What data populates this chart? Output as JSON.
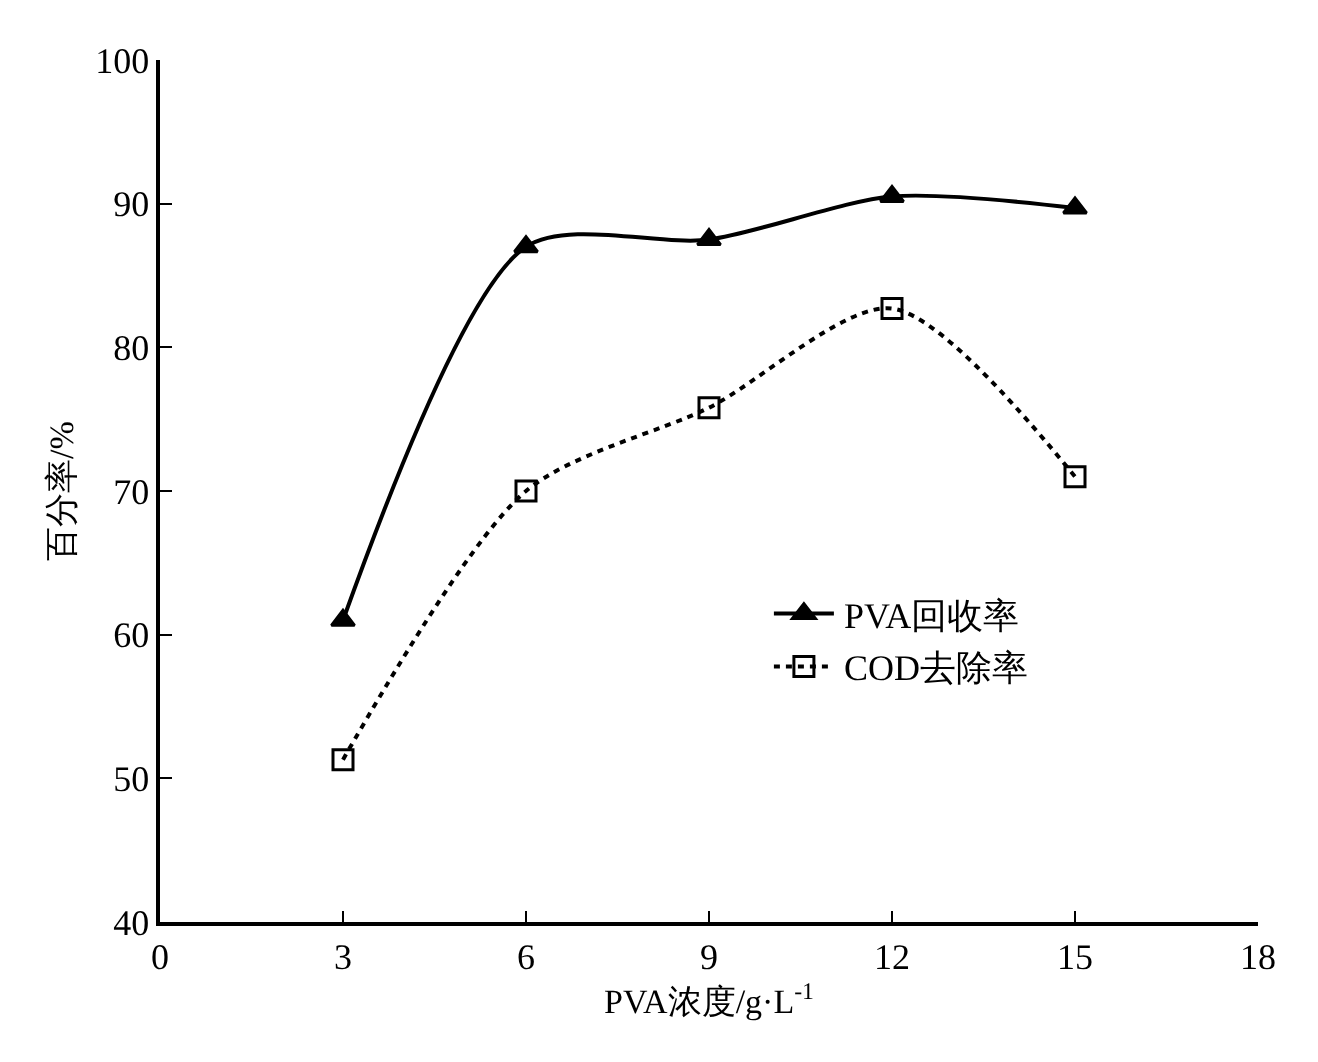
{
  "chart_data": {
    "type": "line",
    "xlabel": "PVA浓度/g·L$^{-1}$",
    "ylabel": "百分率/%",
    "x": [
      3,
      6,
      9,
      12,
      15
    ],
    "series": [
      {
        "name": "PVA回收率",
        "color": "#000000",
        "values": [
          61,
          87,
          87.5,
          90.5,
          89.7
        ],
        "marker": "triangle",
        "line_style": "solid"
      },
      {
        "name": "COD去除率",
        "color": "#000000",
        "values": [
          51.3,
          70,
          75.8,
          82.7,
          71
        ],
        "marker": "square",
        "line_style": "dotted"
      }
    ],
    "xlim": [
      0,
      18
    ],
    "xticks": [
      0,
      3,
      6,
      9,
      12,
      15,
      18
    ],
    "ylim": [
      40,
      100
    ],
    "yticks": [
      40,
      50,
      60,
      70,
      80,
      90,
      100
    ],
    "legend": "right"
  }
}
